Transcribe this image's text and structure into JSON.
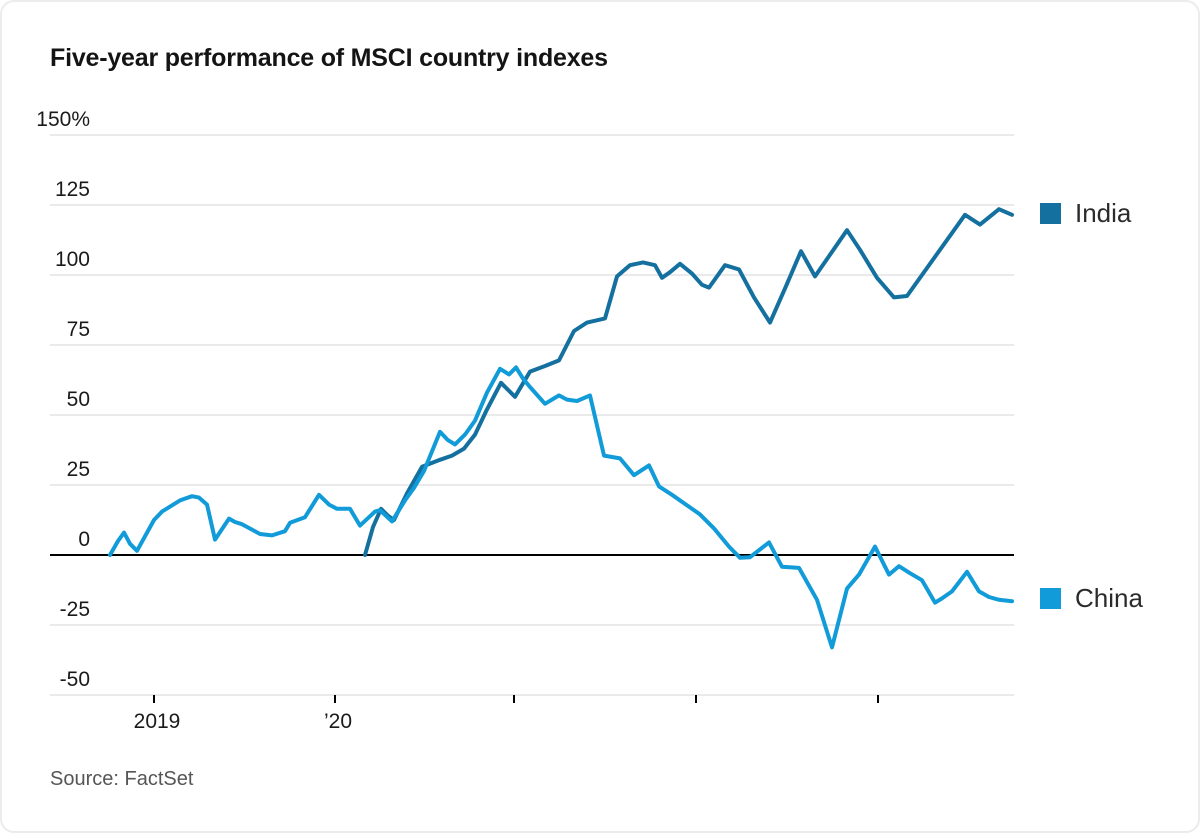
{
  "page": {
    "title": "Five-year performance of MSCI country indexes",
    "source": "Source: FactSet"
  },
  "chart_data": {
    "type": "line",
    "title": "Five-year performance of MSCI country indexes",
    "source_label": "Source: FactSet",
    "unit": "percent",
    "legend_position": "right",
    "grid": true,
    "grid_color": "#e3e3e3",
    "zero_line_color": "#000000",
    "tick_color": "#000000",
    "y_axis": {
      "min": -50,
      "max": 150,
      "ticks": [
        {
          "label": "150%",
          "value": 150
        },
        {
          "label": "125",
          "value": 125
        },
        {
          "label": "100",
          "value": 100
        },
        {
          "label": "75",
          "value": 75
        },
        {
          "label": "50",
          "value": 50
        },
        {
          "label": "25",
          "value": 25
        },
        {
          "label": "0",
          "value": 0
        },
        {
          "label": "-25",
          "value": -25
        },
        {
          "label": "-50",
          "value": -50
        }
      ]
    },
    "x_axis": {
      "ticks": [
        {
          "x": 152,
          "label": "2019"
        },
        {
          "x": 333,
          "label": "’20"
        },
        {
          "x": 512,
          "label": ""
        },
        {
          "x": 694,
          "label": ""
        },
        {
          "x": 876,
          "label": ""
        }
      ]
    },
    "series": [
      {
        "name": "India",
        "color": "#14709e",
        "points": [
          [
            363,
            0
          ],
          [
            371,
            10
          ],
          [
            379,
            16.5
          ],
          [
            386,
            14
          ],
          [
            392,
            12.5
          ],
          [
            405,
            22
          ],
          [
            420,
            31.5
          ],
          [
            438,
            34
          ],
          [
            450,
            35.5
          ],
          [
            462,
            38
          ],
          [
            473,
            43
          ],
          [
            485,
            52
          ],
          [
            499,
            61.5
          ],
          [
            513,
            56.5
          ],
          [
            528,
            65.5
          ],
          [
            543,
            67.5
          ],
          [
            557,
            69.5
          ],
          [
            572,
            80
          ],
          [
            585,
            83
          ],
          [
            603,
            84.5
          ],
          [
            615,
            99.5
          ],
          [
            628,
            103.5
          ],
          [
            641,
            104.5
          ],
          [
            653,
            103.5
          ],
          [
            660,
            99
          ],
          [
            668,
            101
          ],
          [
            678,
            104
          ],
          [
            690,
            100.5
          ],
          [
            700,
            96.5
          ],
          [
            707,
            95.5
          ],
          [
            723,
            103.5
          ],
          [
            737,
            102
          ],
          [
            752,
            92
          ],
          [
            768,
            83
          ],
          [
            784,
            96
          ],
          [
            799,
            108.5
          ],
          [
            813,
            99.5
          ],
          [
            845,
            116
          ],
          [
            858,
            109
          ],
          [
            875,
            99
          ],
          [
            892,
            92
          ],
          [
            905,
            92.5
          ],
          [
            963,
            121.5
          ],
          [
            978,
            118
          ],
          [
            997,
            123.5
          ],
          [
            1010,
            121.5
          ]
        ]
      },
      {
        "name": "China",
        "color": "#119bd8",
        "points": [
          [
            108,
            0
          ],
          [
            116,
            5
          ],
          [
            122,
            8
          ],
          [
            128,
            4
          ],
          [
            135,
            1.5
          ],
          [
            152,
            12.5
          ],
          [
            160,
            15.5
          ],
          [
            178,
            19.5
          ],
          [
            190,
            21
          ],
          [
            197,
            20.5
          ],
          [
            205,
            18
          ],
          [
            213,
            5.5
          ],
          [
            227,
            13
          ],
          [
            233,
            11.8
          ],
          [
            240,
            11
          ],
          [
            258,
            7.5
          ],
          [
            270,
            7
          ],
          [
            283,
            8.5
          ],
          [
            288,
            11.5
          ],
          [
            303,
            13.5
          ],
          [
            317,
            21.5
          ],
          [
            327,
            18
          ],
          [
            335,
            16.5
          ],
          [
            348,
            16.5
          ],
          [
            358,
            10.5
          ],
          [
            367,
            13.5
          ],
          [
            373,
            15.5
          ],
          [
            378,
            16
          ],
          [
            390,
            12
          ],
          [
            403,
            19.5
          ],
          [
            412,
            24
          ],
          [
            422,
            30
          ],
          [
            430,
            37
          ],
          [
            438,
            44
          ],
          [
            446,
            41
          ],
          [
            453,
            39.5
          ],
          [
            463,
            43
          ],
          [
            473,
            48
          ],
          [
            485,
            58
          ],
          [
            498,
            66.5
          ],
          [
            507,
            64.5
          ],
          [
            514,
            67
          ],
          [
            521,
            63
          ],
          [
            528,
            60
          ],
          [
            543,
            54
          ],
          [
            557,
            57
          ],
          [
            565,
            55.5
          ],
          [
            575,
            55
          ],
          [
            588,
            57
          ],
          [
            602,
            35.5
          ],
          [
            618,
            34.5
          ],
          [
            632,
            28.5
          ],
          [
            647,
            32
          ],
          [
            657,
            24.5
          ],
          [
            670,
            21.5
          ],
          [
            684,
            18
          ],
          [
            698,
            14.5
          ],
          [
            712,
            9.5
          ],
          [
            727,
            3
          ],
          [
            738,
            -1
          ],
          [
            748,
            -0.8
          ],
          [
            767,
            4.5
          ],
          [
            780,
            -4.2
          ],
          [
            797,
            -4.6
          ],
          [
            815,
            -16
          ],
          [
            830,
            -33
          ],
          [
            845,
            -12
          ],
          [
            857,
            -7
          ],
          [
            873,
            3
          ],
          [
            887,
            -7
          ],
          [
            897,
            -4
          ],
          [
            908,
            -6.5
          ],
          [
            920,
            -9
          ],
          [
            933,
            -17
          ],
          [
            940,
            -15.5
          ],
          [
            950,
            -13
          ],
          [
            965,
            -6
          ],
          [
            977,
            -13
          ],
          [
            987,
            -15
          ],
          [
            997,
            -16
          ],
          [
            1010,
            -16.5
          ]
        ]
      }
    ]
  }
}
